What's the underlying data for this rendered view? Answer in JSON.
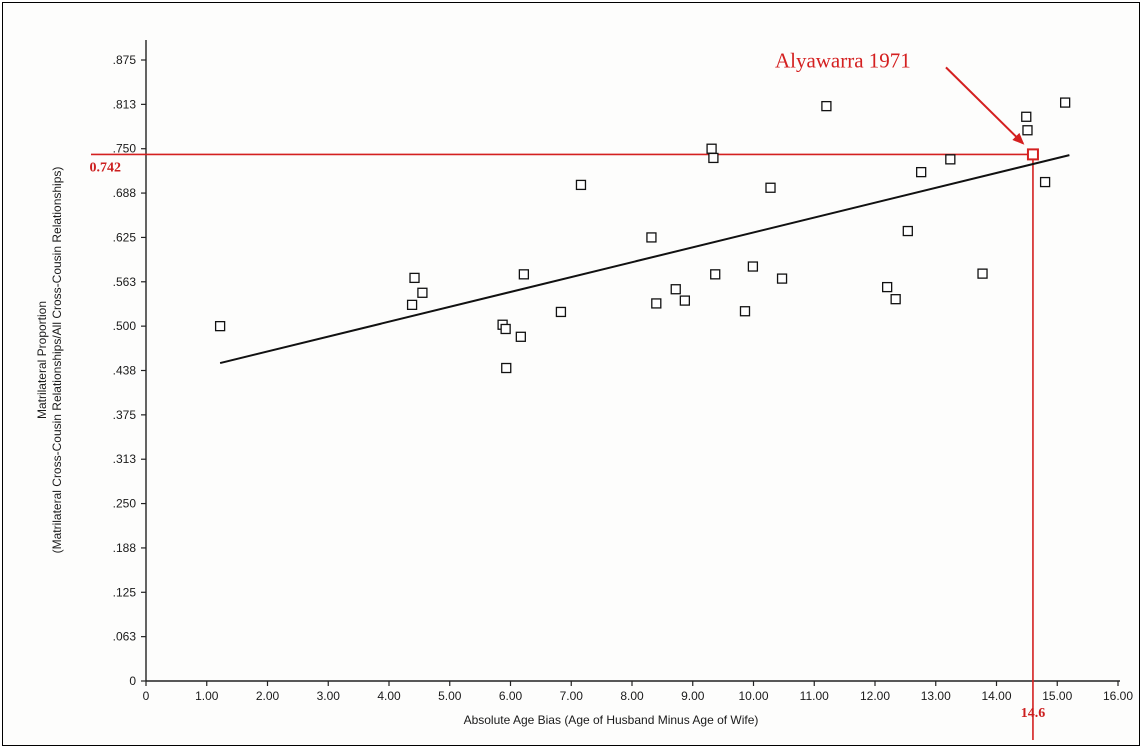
{
  "chart_data": {
    "type": "scatter",
    "xlabel": "Absolute Age Bias (Age of Husband Minus Age of Wife)",
    "ylabel_line1": "Matrilateral Proportion",
    "ylabel_line2": "(Matrilateral Cross-Cousin Relationships/All Cross-Cousin Relationships)",
    "xlim": [
      0,
      16
    ],
    "ylim": [
      0,
      0.875
    ],
    "x_ticks": [
      0,
      1,
      2,
      3,
      4,
      5,
      6,
      7,
      8,
      9,
      10,
      11,
      12,
      13,
      14,
      15,
      16
    ],
    "x_tick_labels": [
      "0",
      "1.00",
      "2.00",
      "3.00",
      "4.00",
      "5.00",
      "6.00",
      "7.00",
      "8.00",
      "9.00",
      "10.00",
      "11.00",
      "12.00",
      "13.00",
      "14.00",
      "15.00",
      "16.00"
    ],
    "y_ticks": [
      0,
      0.0625,
      0.125,
      0.1875,
      0.25,
      0.3125,
      0.375,
      0.4375,
      0.5,
      0.5625,
      0.625,
      0.6875,
      0.75,
      0.8125,
      0.875
    ],
    "y_tick_labels": [
      "0",
      ".063",
      ".125",
      ".188",
      ".250",
      ".313",
      ".375",
      ".438",
      ".500",
      ".563",
      ".625",
      ".688",
      ".750",
      ".813",
      ".875"
    ],
    "points": [
      {
        "x": 1.22,
        "y": 0.5
      },
      {
        "x": 4.38,
        "y": 0.53
      },
      {
        "x": 4.42,
        "y": 0.568
      },
      {
        "x": 4.55,
        "y": 0.547
      },
      {
        "x": 5.87,
        "y": 0.502
      },
      {
        "x": 5.92,
        "y": 0.496
      },
      {
        "x": 5.93,
        "y": 0.441
      },
      {
        "x": 6.17,
        "y": 0.485
      },
      {
        "x": 6.22,
        "y": 0.573
      },
      {
        "x": 6.83,
        "y": 0.52
      },
      {
        "x": 7.16,
        "y": 0.699
      },
      {
        "x": 8.32,
        "y": 0.625
      },
      {
        "x": 8.4,
        "y": 0.532
      },
      {
        "x": 8.72,
        "y": 0.552
      },
      {
        "x": 8.87,
        "y": 0.536
      },
      {
        "x": 9.31,
        "y": 0.75
      },
      {
        "x": 9.34,
        "y": 0.737
      },
      {
        "x": 9.37,
        "y": 0.573
      },
      {
        "x": 9.86,
        "y": 0.521
      },
      {
        "x": 9.99,
        "y": 0.584
      },
      {
        "x": 10.28,
        "y": 0.695
      },
      {
        "x": 10.47,
        "y": 0.567
      },
      {
        "x": 11.2,
        "y": 0.81
      },
      {
        "x": 12.2,
        "y": 0.555
      },
      {
        "x": 12.34,
        "y": 0.538
      },
      {
        "x": 12.54,
        "y": 0.634
      },
      {
        "x": 12.76,
        "y": 0.717
      },
      {
        "x": 13.24,
        "y": 0.735
      },
      {
        "x": 13.77,
        "y": 0.574
      },
      {
        "x": 14.49,
        "y": 0.795
      },
      {
        "x": 14.51,
        "y": 0.776
      },
      {
        "x": 14.8,
        "y": 0.703
      },
      {
        "x": 15.13,
        "y": 0.815
      }
    ],
    "highlight_point": {
      "x": 14.6,
      "y": 0.742,
      "label": "Alyawarra 1971",
      "color": "#d42020"
    },
    "ref_x_label": "14.6",
    "ref_y_label": "0.742",
    "trend_line": {
      "x": [
        1.22,
        15.2
      ],
      "y": [
        0.448,
        0.741
      ],
      "color": "#000000"
    },
    "grid": false,
    "legend": "none"
  }
}
